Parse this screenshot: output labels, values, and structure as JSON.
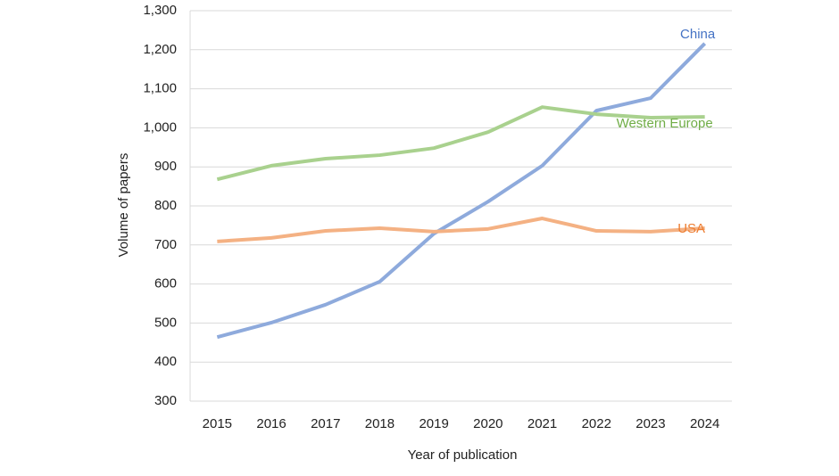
{
  "chart_data": {
    "type": "line",
    "x_label": "Year of publication",
    "y_label": "Volume of papers",
    "categories": [
      "2015",
      "2016",
      "2017",
      "2018",
      "2019",
      "2020",
      "2021",
      "2022",
      "2023",
      "2024"
    ],
    "series": [
      {
        "name": "China",
        "color": "#8eaadc",
        "label_color": "#4472c4",
        "values": [
          464,
          501,
          547,
          606,
          729,
          811,
          903,
          1044,
          1076,
          1216
        ]
      },
      {
        "name": "Western Europe",
        "color": "#a9d18e",
        "label_color": "#70ad47",
        "values": [
          868,
          903,
          921,
          930,
          948,
          989,
          1053,
          1035,
          1026,
          1028
        ]
      },
      {
        "name": "USA",
        "color": "#f4b183",
        "label_color": "#ed7d31",
        "values": [
          709,
          718,
          736,
          743,
          734,
          741,
          768,
          736,
          734,
          743
        ]
      }
    ],
    "ylim": [
      300,
      1300
    ],
    "yticks": [
      300,
      400,
      500,
      600,
      700,
      800,
      900,
      {
        "value": 1000,
        "label": "1,000"
      },
      {
        "value": 1100,
        "label": "1,100"
      },
      {
        "value": 1200,
        "label": "1,200"
      },
      {
        "value": 1300,
        "label": "1,300"
      }
    ],
    "grid": true
  }
}
